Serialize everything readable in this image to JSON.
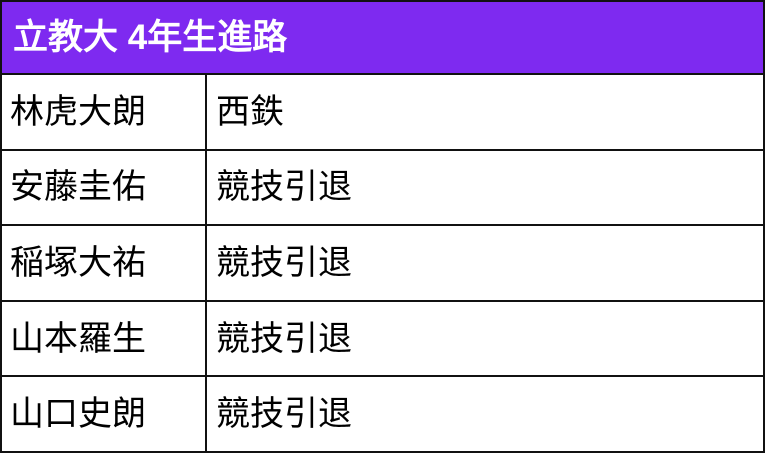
{
  "chart_data": {
    "type": "table",
    "title": "立教大 4年生進路",
    "rows": [
      [
        "林虎大朗",
        "西鉄"
      ],
      [
        "安藤圭佑",
        "競技引退"
      ],
      [
        "稲塚大祐",
        "競技引退"
      ],
      [
        "山本羅生",
        "競技引退"
      ],
      [
        "山口史朗",
        "競技引退"
      ]
    ]
  },
  "colors": {
    "header_bg": "#7e2af0",
    "header_text": "#ffffff",
    "border": "#111111",
    "cell_bg": "#ffffff",
    "cell_text": "#000000"
  }
}
